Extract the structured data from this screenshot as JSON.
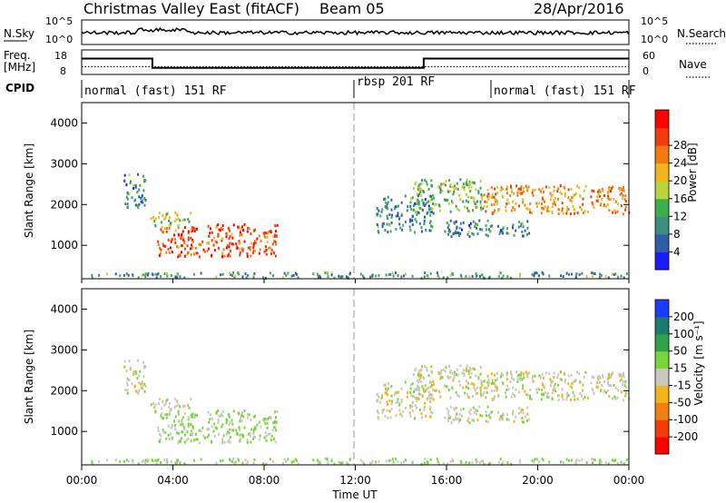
{
  "header": {
    "station": "Christmas Valley East (fitACF)",
    "beam": "Beam 05",
    "date": "28/Apr/2016"
  },
  "noise_panel": {
    "left_label": "N.Sky",
    "left_ticks": [
      "10^5",
      "10^0"
    ],
    "right_ticks": [
      "10^5",
      "10^0"
    ],
    "right_label": "N.Search",
    "right_label_style": "dotted"
  },
  "freq_panel": {
    "left_label_1": "Freq.",
    "left_label_2": "[MHz]",
    "left_ticks": [
      "18",
      "8"
    ],
    "right_ticks": [
      "60",
      "0"
    ],
    "right_label": "Nave",
    "right_label_style": "dotted",
    "freq_step": [
      {
        "t": 0.0,
        "mhz": 14.5
      },
      {
        "t": 3.1,
        "mhz": 10.7
      },
      {
        "t": 15.0,
        "mhz": 14.5
      },
      {
        "t": 24.0,
        "mhz": 14.5
      }
    ],
    "nave_level": 19
  },
  "cpid_panel": {
    "label": "CPID",
    "segments": [
      {
        "start": 0.0,
        "end": 12.0,
        "text": "normal (fast) 151 RF"
      },
      {
        "start": 12.0,
        "end": 18.0,
        "text": "rbsp 201 RF"
      },
      {
        "start": 18.0,
        "end": 24.0,
        "text": "normal (fast) 151 RF"
      }
    ]
  },
  "power_panel": {
    "ylabel": "Slant Range [km]",
    "yticks": [
      "1000",
      "2000",
      "3000",
      "4000"
    ],
    "colorbar_label": "Power [dB]",
    "colorbar_ticks": [
      "4",
      "8",
      "12",
      "16",
      "20",
      "24",
      "28"
    ],
    "colors": [
      "#1b1bff",
      "#2d5fa8",
      "#3e8e7e",
      "#3bb04a",
      "#b9d43a",
      "#f2b418",
      "#f27a0f",
      "#f23a0a",
      "#ff0000"
    ]
  },
  "velocity_panel": {
    "ylabel": "Slant Range [km]",
    "yticks": [
      "1000",
      "2000",
      "3000",
      "4000"
    ],
    "colorbar_label": "Velocity [m s⁻¹]",
    "colorbar_ticks": [
      "200",
      "100",
      "50",
      "15",
      "-15",
      "-50",
      "-100",
      "-200"
    ],
    "colors": [
      "#1b3cff",
      "#1e7a70",
      "#2fa24a",
      "#79d63a",
      "#c8c8c0",
      "#f2b418",
      "#f28010",
      "#f23c0a",
      "#ff0000"
    ]
  },
  "xaxis": {
    "ticks": [
      "00:00",
      "04:00",
      "08:00",
      "12:00",
      "16:00",
      "20:00",
      "00:00"
    ],
    "label": "Time UT"
  },
  "chart_data": {
    "type": "heatmap",
    "title": "Christmas Valley East (fitACF)",
    "x": {
      "label": "Time UT",
      "range_hours": [
        0,
        24
      ],
      "tick_labels": [
        "00:00",
        "04:00",
        "08:00",
        "12:00",
        "16:00",
        "20:00",
        "00:00"
      ],
      "marker_line_hours": [
        12
      ]
    },
    "y": {
      "label": "Slant Range [km]",
      "range_km": [
        180,
        4500
      ],
      "tick_values": [
        1000,
        2000,
        3000,
        4000
      ]
    },
    "power_db_range": [
      0,
      32
    ],
    "velocity_range": [
      -250,
      250
    ],
    "grid": false,
    "echo_regions": [
      {
        "name": "main",
        "t0": 3.3,
        "t1": 8.6,
        "r0": 700,
        "r1": 1500,
        "power_db": 26,
        "velocity": 20
      },
      {
        "name": "upper-left",
        "t0": 3.0,
        "t1": 4.8,
        "r0": 1450,
        "r1": 1800,
        "power_db": 16,
        "velocity": 0
      },
      {
        "name": "scatter-left",
        "t0": 1.8,
        "t1": 2.8,
        "r0": 1900,
        "r1": 2750,
        "power_db": 9,
        "velocity": 0
      },
      {
        "name": "near-range",
        "t0": 0.0,
        "t1": 24.0,
        "r0": 180,
        "r1": 320,
        "power_db": 10,
        "velocity": 20
      },
      {
        "name": "band-1",
        "t0": 14.5,
        "t1": 17.6,
        "r0": 1800,
        "r1": 2600,
        "power_db": 13,
        "velocity": 0
      },
      {
        "name": "band-2",
        "t0": 17.6,
        "t1": 24.0,
        "r0": 1750,
        "r1": 2450,
        "power_db": 22,
        "velocity": 0
      },
      {
        "name": "band-3",
        "t0": 15.8,
        "t1": 19.6,
        "r0": 1200,
        "r1": 1600,
        "power_db": 9,
        "velocity": 0
      },
      {
        "name": "mid",
        "t0": 12.9,
        "t1": 15.4,
        "r0": 1300,
        "r1": 2200,
        "power_db": 9,
        "velocity": 0
      }
    ]
  }
}
